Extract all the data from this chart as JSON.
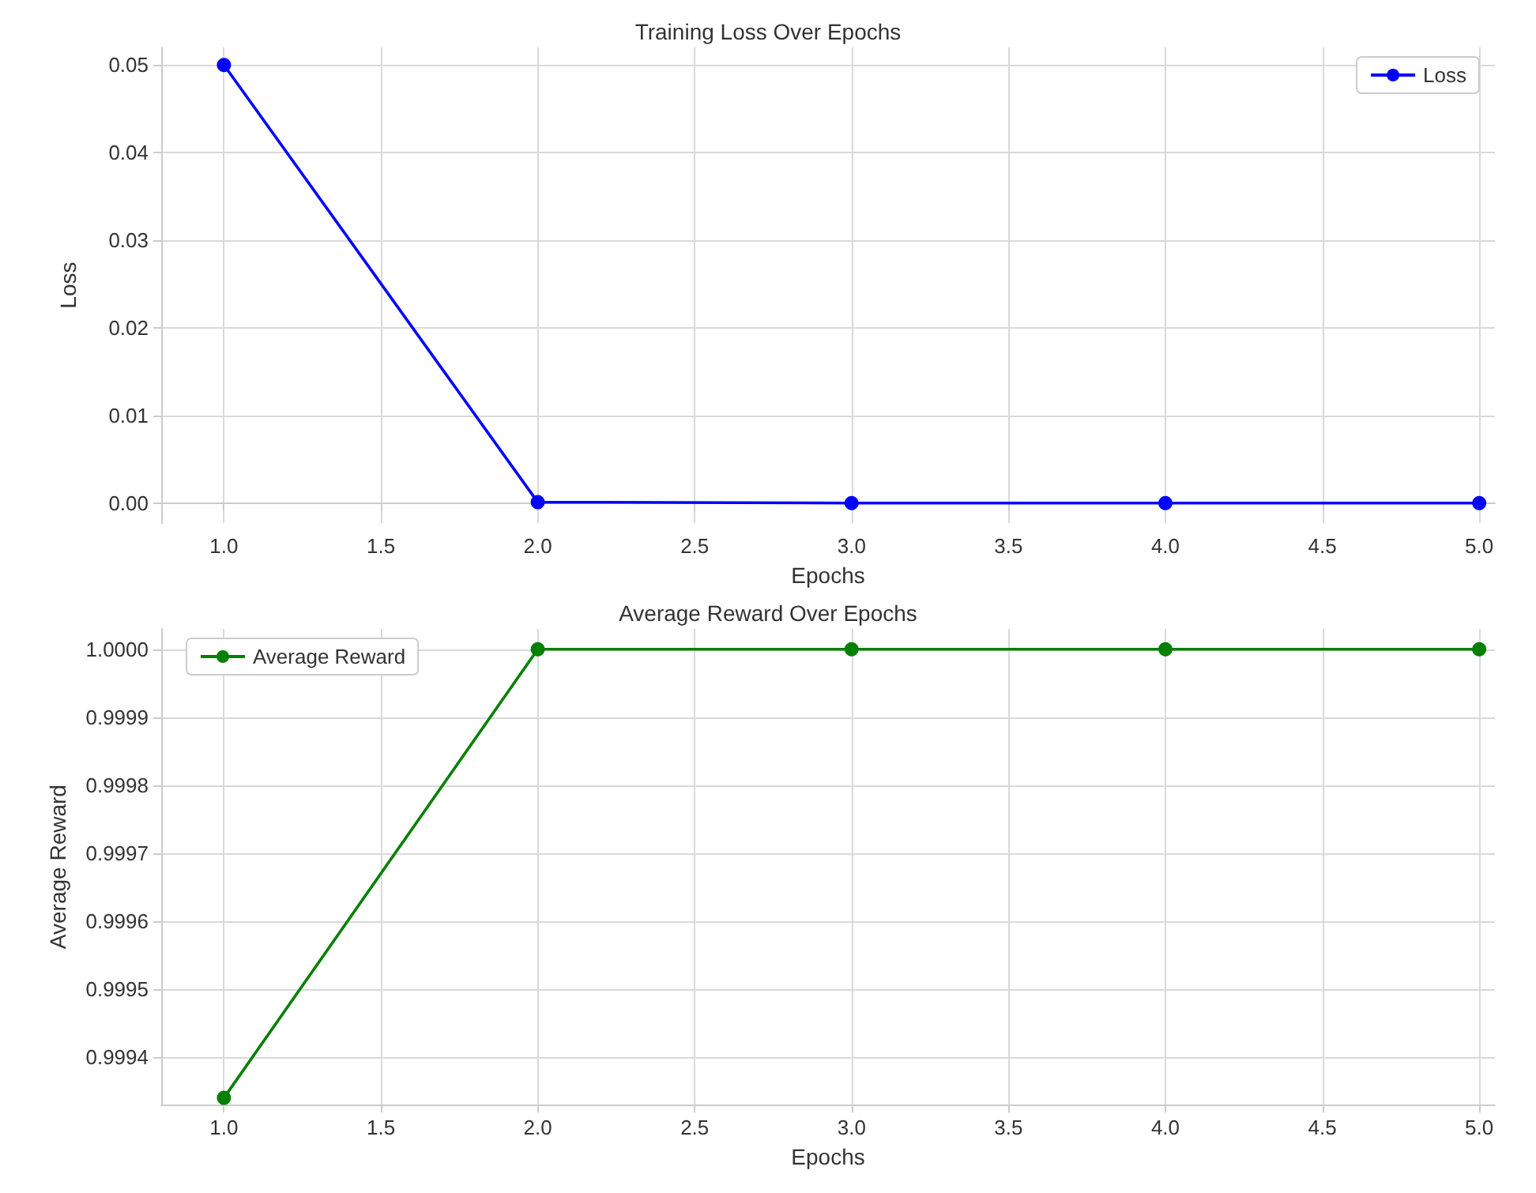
{
  "chart_data": [
    {
      "type": "line",
      "title": "Training Loss Over Epochs",
      "xlabel": "Epochs",
      "ylabel": "Loss",
      "x": [
        1,
        2,
        3,
        4,
        5
      ],
      "series": [
        {
          "name": "Loss",
          "color": "#0000ff",
          "values": [
            0.05,
            0.0001,
            0,
            0,
            0
          ]
        }
      ],
      "xlim": [
        0.8,
        5.05
      ],
      "xticks": [
        {
          "value": 1,
          "label": "1.0"
        },
        {
          "value": 1.5,
          "label": "1.5"
        },
        {
          "value": 2,
          "label": "2.0"
        },
        {
          "value": 2.5,
          "label": "2.5"
        },
        {
          "value": 3,
          "label": "3.0"
        },
        {
          "value": 3.5,
          "label": "3.5"
        },
        {
          "value": 4,
          "label": "4.0"
        },
        {
          "value": 4.5,
          "label": "4.5"
        },
        {
          "value": 5,
          "label": "5.0"
        }
      ],
      "ylim": [
        -0.0023,
        0.052
      ],
      "yticks": [
        {
          "value": 0,
          "label": "0.00"
        },
        {
          "value": 0.01,
          "label": "0.01"
        },
        {
          "value": 0.02,
          "label": "0.02"
        },
        {
          "value": 0.03,
          "label": "0.03"
        },
        {
          "value": 0.04,
          "label": "0.04"
        },
        {
          "value": 0.05,
          "label": "0.05"
        }
      ],
      "grid": true,
      "legend": "top right",
      "marker": "circle",
      "line_style": "solid"
    },
    {
      "type": "line",
      "title": "Average Reward Over Epochs",
      "xlabel": "Epochs",
      "ylabel": "Average Reward",
      "x": [
        1,
        2,
        3,
        4,
        5
      ],
      "series": [
        {
          "name": "Average Reward",
          "color": "#008000",
          "values": [
            0.99934,
            1,
            1,
            1,
            1
          ]
        }
      ],
      "xlim": [
        0.8,
        5.05
      ],
      "xticks": [
        {
          "value": 1,
          "label": "1.0"
        },
        {
          "value": 1.5,
          "label": "1.5"
        },
        {
          "value": 2,
          "label": "2.0"
        },
        {
          "value": 2.5,
          "label": "2.5"
        },
        {
          "value": 3,
          "label": "3.0"
        },
        {
          "value": 3.5,
          "label": "3.5"
        },
        {
          "value": 4,
          "label": "4.0"
        },
        {
          "value": 4.5,
          "label": "4.5"
        },
        {
          "value": 5,
          "label": "5.0"
        }
      ],
      "ylim": [
        0.99933,
        1.00003
      ],
      "yticks": [
        {
          "value": 0.9994,
          "label": "0.9994"
        },
        {
          "value": 0.9995,
          "label": "0.9995"
        },
        {
          "value": 0.9996,
          "label": "0.9996"
        },
        {
          "value": 0.9997,
          "label": "0.9997"
        },
        {
          "value": 0.9998,
          "label": "0.9998"
        },
        {
          "value": 0.9999,
          "label": "0.9999"
        },
        {
          "value": 1,
          "label": "1.0000"
        }
      ],
      "grid": true,
      "legend": "top left",
      "marker": "circle",
      "line_style": "solid"
    }
  ]
}
